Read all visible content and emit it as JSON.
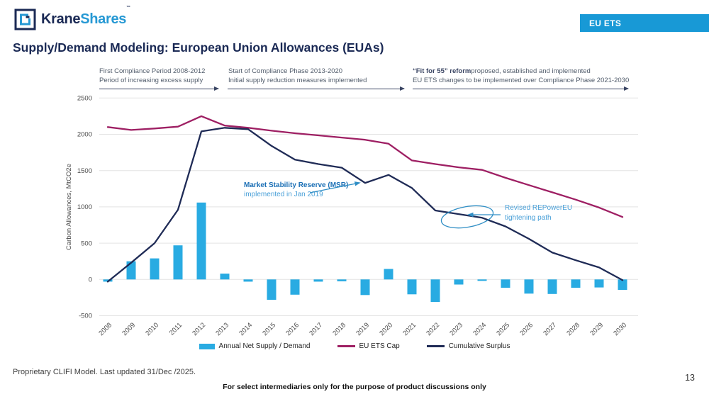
{
  "header": {
    "brand": {
      "krane": "Krane",
      "shares": "Shares",
      "tm": "TM"
    },
    "badge": "EU ETS"
  },
  "title": "Supply/Demand Modeling: European Union Allowances (EUAs)",
  "phases": {
    "phase1": {
      "line1": "First Compliance Period 2008-2012",
      "line2": "Period of increasing excess supply"
    },
    "phase2": {
      "line1": "Start of Compliance Phase 2013-2020",
      "line2": "Initial supply reduction measures implemented"
    },
    "phase3": {
      "bold": "“Fit for 55” reform",
      "rest": "proposed, established and implemented",
      "line2": "EU ETS changes to be implemented over Compliance Phase 2021-2030"
    }
  },
  "chart_data": {
    "type": "bar",
    "subtype": "combo-bar-line",
    "categories": [
      2008,
      2009,
      2010,
      2011,
      2012,
      2013,
      2014,
      2015,
      2016,
      2017,
      2018,
      2019,
      2020,
      2021,
      2022,
      2023,
      2024,
      2025,
      2026,
      2027,
      2028,
      2029,
      2030
    ],
    "series": [
      {
        "name": "Annual Net Supply / Demand",
        "type": "bar",
        "color": "#29abe2",
        "values": [
          -30,
          250,
          290,
          470,
          1060,
          80,
          -30,
          -280,
          -210,
          -30,
          -25,
          -215,
          145,
          -205,
          -310,
          -70,
          -20,
          -115,
          -195,
          -200,
          -115,
          -110,
          -145
        ]
      },
      {
        "name": "EU ETS Cap",
        "type": "line",
        "color": "#9e1f63",
        "values": [
          2100,
          2060,
          2080,
          2105,
          2250,
          2120,
          2090,
          2050,
          2015,
          1985,
          1955,
          1925,
          1870,
          1640,
          1590,
          1545,
          1510,
          1400,
          1300,
          1200,
          1100,
          990,
          860
        ]
      },
      {
        "name": "Cumulative Surplus",
        "type": "line",
        "color": "#1f2b56",
        "values": [
          -30,
          230,
          500,
          960,
          2040,
          2090,
          2070,
          1840,
          1650,
          1590,
          1540,
          1330,
          1440,
          1260,
          950,
          900,
          850,
          730,
          560,
          370,
          265,
          165,
          -10
        ]
      }
    ],
    "ylabel": "Carbon Allowances, MtCO2e",
    "ylim": [
      -500,
      2500
    ],
    "yticks": [
      -500,
      0,
      500,
      1000,
      1500,
      2000,
      2500
    ],
    "grid": true,
    "legend_position": "bottom",
    "annotations": [
      {
        "id": "msr",
        "line1": "Market Stability Reserve (MSR)",
        "line2": "implemented in Jan 2019"
      },
      {
        "id": "repowereu",
        "line1": "Revised REPowerEU",
        "line2": "tightening path"
      }
    ]
  },
  "footer": {
    "source": "Proprietary CLIFI Model. Last updated 31/Dec /2025.",
    "disclaimer": "For select intermediaries only for the purpose of product discussions only",
    "page": "13"
  },
  "colors": {
    "accent_blue": "#29abe2",
    "badge_blue": "#1899d6",
    "navy": "#1f2b56",
    "magenta": "#9e1f63",
    "annotation_blue": "#4aa0d8",
    "annotation_blue_dark": "#1b6fb5"
  }
}
